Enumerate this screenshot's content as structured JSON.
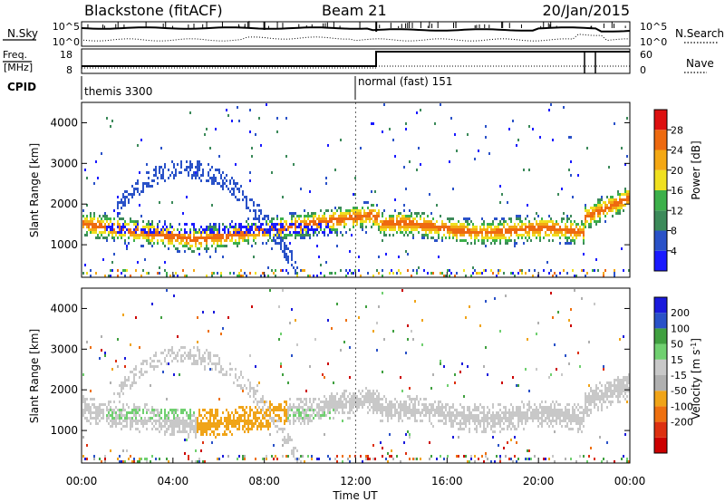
{
  "header": {
    "station": "Blackstone (fitACF)",
    "beam": "Beam 21",
    "date": "20/Jan/2015"
  },
  "sky_panel": {
    "left_label": "N.Sky",
    "right_label": "N.Search",
    "ticks_left": [
      "10^5",
      "10^0"
    ],
    "ticks_right": [
      "10^5",
      "10^0"
    ]
  },
  "freq_panel": {
    "left_label_top": "Freq.",
    "left_label_bottom": "[MHz]",
    "right_label": "Nave",
    "ticks_left": [
      "18",
      "8"
    ],
    "ticks_right": [
      "60",
      "0"
    ]
  },
  "cpid_panel": {
    "label": "CPID",
    "modes": [
      {
        "name": "themis 3300",
        "start_hour": 0
      },
      {
        "name": "normal (fast) 151",
        "start_hour": 12
      }
    ]
  },
  "colors": {
    "power": [
      "#1a1aff",
      "#2a52c8",
      "#3c8a5a",
      "#3cb04a",
      "#f0e020",
      "#f4a814",
      "#ee6a10",
      "#dd1010"
    ],
    "velocity": [
      "#1a1adc",
      "#2a52c8",
      "#40a040",
      "#70d070",
      "#c8c8c8",
      "#b0b0b0",
      "#f0a418",
      "#ee7010",
      "#dd3010",
      "#cc0000"
    ]
  },
  "chart_data": [
    {
      "type": "heatmap",
      "name": "power",
      "ylabel": "Slant Range [km]",
      "yticks": [
        1000,
        2000,
        3000,
        4000
      ],
      "ylim": [
        200,
        4500
      ],
      "colorbar_label": "Power [dB]",
      "colorbar_ticks": [
        "4",
        "8",
        "12",
        "16",
        "20",
        "24",
        "28"
      ],
      "clim": [
        0,
        30
      ]
    },
    {
      "type": "heatmap",
      "name": "velocity",
      "ylabel": "Slant Range [km]",
      "yticks": [
        1000,
        2000,
        3000,
        4000
      ],
      "ylim": [
        200,
        4500
      ],
      "colorbar_label": "Velocity [m s",
      "colorbar_label_sup": "-1",
      "colorbar_label_end": "]",
      "colorbar_ticks": [
        "200",
        "100",
        "50",
        "15",
        "-15",
        "-50",
        "-100",
        "-200"
      ]
    }
  ],
  "x_axis": {
    "label": "Time UT",
    "ticks": [
      "00:00",
      "04:00",
      "08:00",
      "12:00",
      "16:00",
      "20:00",
      "00:00"
    ]
  }
}
